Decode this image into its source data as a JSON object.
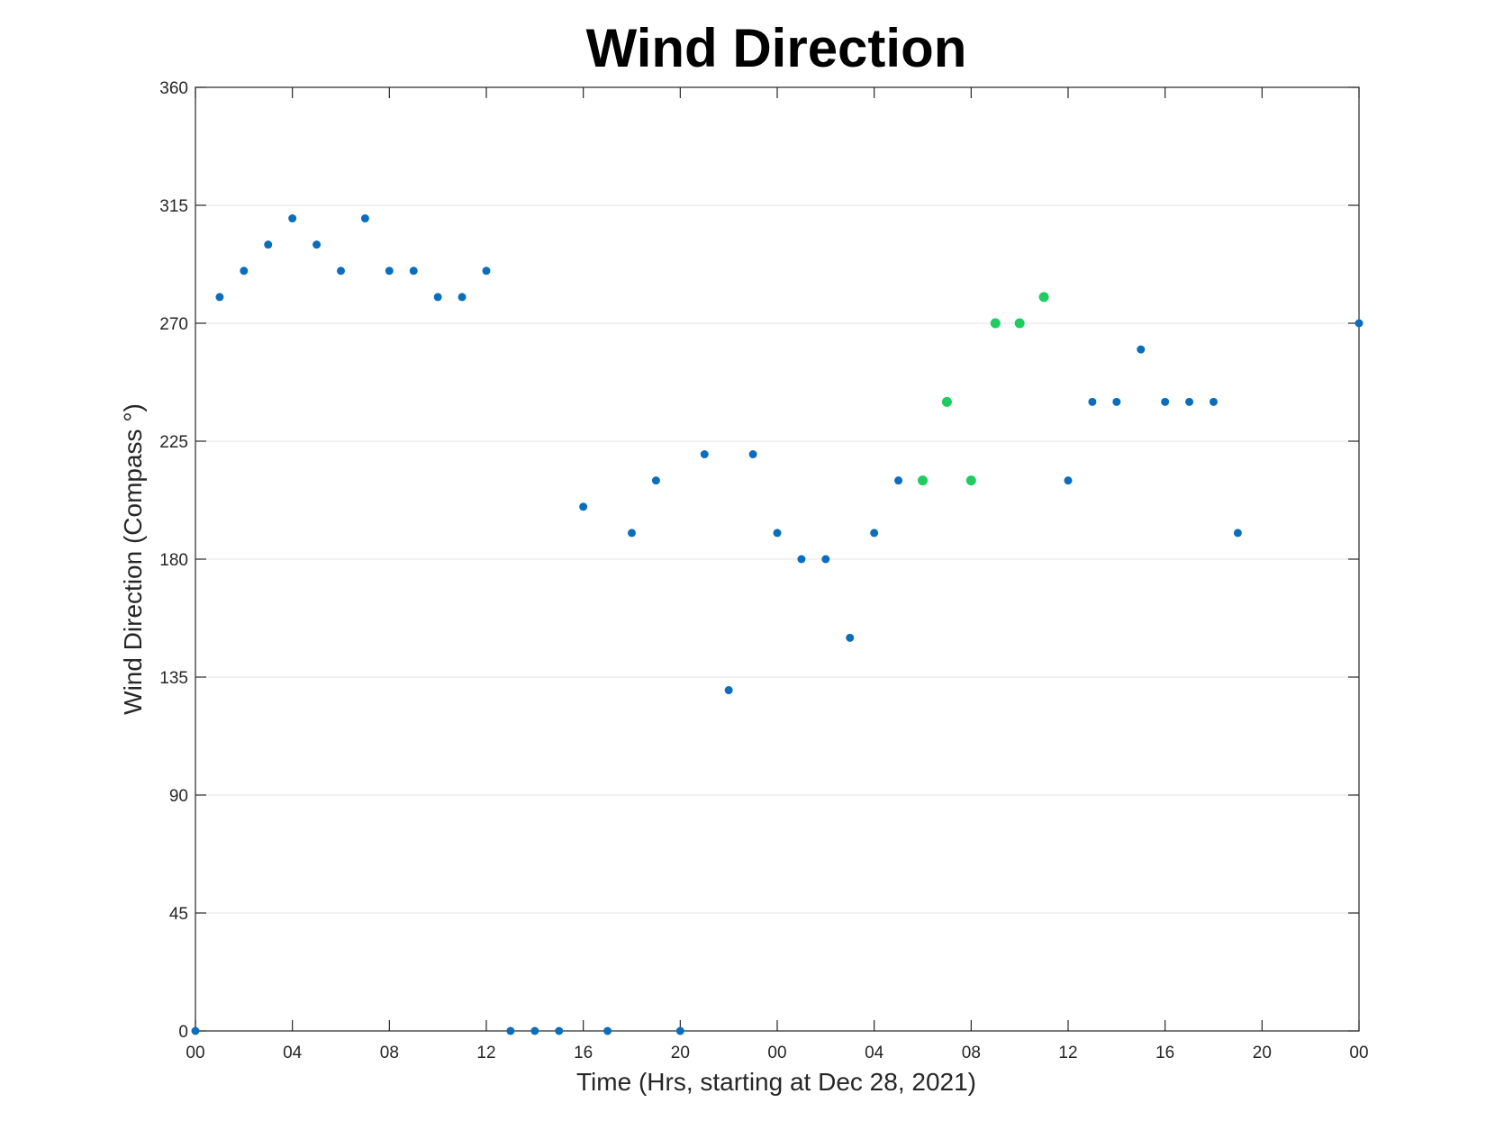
{
  "chart_data": {
    "type": "scatter",
    "title": "Wind Direction",
    "xlabel": "Time (Hrs, starting at Dec 28, 2021)",
    "ylabel": "Wind Direction (Compass °)",
    "xlim": [
      "2021-12-28 00:00",
      "2021-12-30 00:00"
    ],
    "ylim": [
      0,
      360
    ],
    "x_ticks": [
      "00",
      "04",
      "08",
      "12",
      "16",
      "20",
      "00",
      "04",
      "08",
      "12",
      "16",
      "20",
      "00"
    ],
    "y_ticks": [
      0,
      45,
      90,
      135,
      180,
      225,
      270,
      315,
      360
    ],
    "grid": "horizontal",
    "colors": {
      "normal": "#0a6ebd",
      "highlight": "#1ecc5f"
    },
    "series": [
      {
        "color": "#0a6ebd",
        "points": [
          [
            "2021-12-28 00:00",
            0
          ],
          [
            "2021-12-28 01:00",
            280
          ],
          [
            "2021-12-28 02:00",
            290
          ],
          [
            "2021-12-28 03:00",
            300
          ],
          [
            "2021-12-28 04:00",
            310
          ],
          [
            "2021-12-28 05:00",
            300
          ],
          [
            "2021-12-28 06:00",
            290
          ],
          [
            "2021-12-28 07:00",
            310
          ],
          [
            "2021-12-28 08:00",
            290
          ],
          [
            "2021-12-28 09:00",
            290
          ],
          [
            "2021-12-28 10:00",
            280
          ],
          [
            "2021-12-28 11:00",
            280
          ],
          [
            "2021-12-28 12:00",
            290
          ],
          [
            "2021-12-28 13:00",
            0
          ],
          [
            "2021-12-28 14:00",
            0
          ],
          [
            "2021-12-28 15:00",
            0
          ],
          [
            "2021-12-28 16:00",
            200
          ],
          [
            "2021-12-28 17:00",
            0
          ],
          [
            "2021-12-28 18:00",
            190
          ],
          [
            "2021-12-28 19:00",
            210
          ],
          [
            "2021-12-28 20:00",
            0
          ],
          [
            "2021-12-28 21:00",
            220
          ],
          [
            "2021-12-28 22:00",
            130
          ],
          [
            "2021-12-28 23:00",
            220
          ],
          [
            "2021-12-29 00:00",
            190
          ],
          [
            "2021-12-29 01:00",
            180
          ],
          [
            "2021-12-29 02:00",
            180
          ],
          [
            "2021-12-29 03:00",
            150
          ],
          [
            "2021-12-29 04:00",
            190
          ],
          [
            "2021-12-29 05:00",
            210
          ],
          [
            "2021-12-29 12:00",
            210
          ],
          [
            "2021-12-29 13:00",
            240
          ],
          [
            "2021-12-29 14:00",
            240
          ],
          [
            "2021-12-29 15:00",
            260
          ],
          [
            "2021-12-29 16:00",
            240
          ],
          [
            "2021-12-29 17:00",
            240
          ],
          [
            "2021-12-29 18:00",
            240
          ],
          [
            "2021-12-29 19:00",
            190
          ],
          [
            "2021-12-30 00:00",
            270
          ]
        ]
      },
      {
        "color": "#1ecc5f",
        "points": [
          [
            "2021-12-29 06:00",
            210
          ],
          [
            "2021-12-29 07:00",
            240
          ],
          [
            "2021-12-29 08:00",
            210
          ],
          [
            "2021-12-29 09:00",
            270
          ],
          [
            "2021-12-29 10:00",
            270
          ],
          [
            "2021-12-29 11:00",
            280
          ]
        ]
      }
    ]
  }
}
